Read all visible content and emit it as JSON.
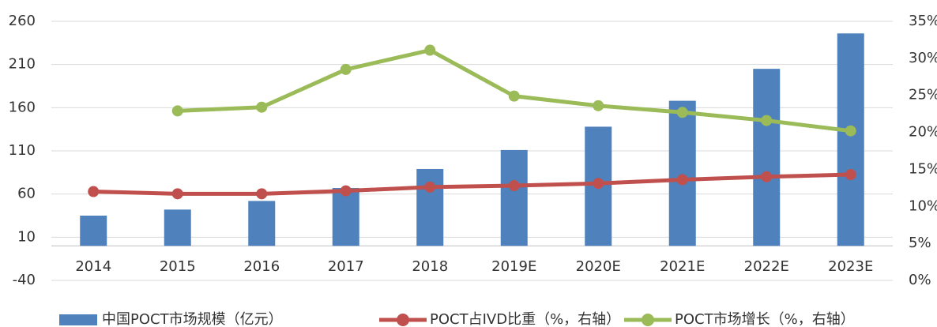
{
  "chart_data": {
    "type": "bar-line",
    "categories": [
      "2014",
      "2015",
      "2016",
      "2017",
      "2018",
      "2019E",
      "2020E",
      "2021E",
      "2022E",
      "2023E"
    ],
    "series": [
      {
        "name": "中国POCT市场规模（亿元）",
        "type": "bar",
        "color": "#4f81bd",
        "values": [
          35,
          42,
          52,
          67,
          89,
          111,
          138,
          168,
          205,
          246
        ]
      },
      {
        "name": "POCT占IVD比重（%，右轴）",
        "type": "line",
        "axis": "y2",
        "color": "#c0504d",
        "values": [
          12.0,
          11.7,
          11.7,
          12.1,
          12.6,
          12.8,
          13.1,
          13.6,
          14.0,
          14.3
        ]
      },
      {
        "name": "POCT市场增长（%，右轴）",
        "type": "line",
        "axis": "y2",
        "color": "#9bbb59",
        "values": [
          null,
          22.9,
          23.4,
          28.5,
          31.1,
          24.9,
          23.6,
          22.7,
          21.6,
          20.2
        ]
      }
    ],
    "ylim": [
      -40,
      260
    ],
    "yticks": [
      -40,
      10,
      60,
      110,
      160,
      210,
      260
    ],
    "y2lim": [
      0,
      35
    ],
    "y2ticks": [
      {
        "value": 0,
        "label": "0%"
      },
      {
        "value": 5,
        "label": "5%"
      },
      {
        "value": 10,
        "label": "10%"
      },
      {
        "value": 15,
        "label": "15%"
      },
      {
        "value": 20,
        "label": "20%"
      },
      {
        "value": 25,
        "label": "25%"
      },
      {
        "value": 30,
        "label": "30%"
      },
      {
        "value": 35,
        "label": "35%"
      }
    ],
    "grid": true,
    "legend": "bottom"
  }
}
